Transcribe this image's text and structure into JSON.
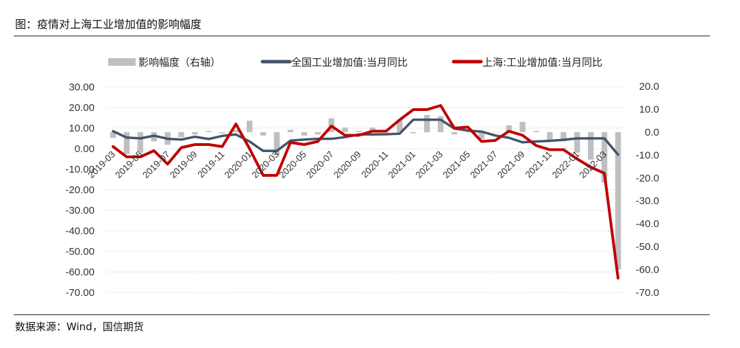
{
  "header": {
    "title": "图：疫情对上海工业增加值的影响幅度"
  },
  "footer": {
    "source": "数据来源：Wind，国信期货"
  },
  "chart_data": {
    "type": "bar+line",
    "title": "",
    "legend_placement": "top",
    "grid": true,
    "x": [
      "2019-03",
      "2019-04",
      "2019-05",
      "2019-06",
      "2019-07",
      "2019-08",
      "2019-09",
      "2019-10",
      "2019-11",
      "2019-12",
      "2020-01",
      "2020-02",
      "2020-03",
      "2020-04",
      "2020-05",
      "2020-06",
      "2020-07",
      "2020-08",
      "2020-09",
      "2020-10",
      "2020-11",
      "2020-12",
      "2021-01",
      "2021-02",
      "2021-03",
      "2021-04",
      "2021-05",
      "2021-06",
      "2021-07",
      "2021-08",
      "2021-09",
      "2021-10",
      "2021-11",
      "2021-12",
      "2022-01",
      "2022-02",
      "2022-03",
      "2022-04"
    ],
    "x_tick_labels": [
      "2019-03",
      "2019-05",
      "2019-07",
      "2019-09",
      "2019-11",
      "2020-01",
      "2020-03",
      "2020-05",
      "2020-07",
      "2020-09",
      "2020-11",
      "2021-01",
      "2021-03",
      "2021-05",
      "2021-07",
      "2021-09",
      "2021-11",
      "2022-01",
      "2022-03"
    ],
    "left_axis": {
      "ylim": [
        -70,
        30
      ],
      "ticks": [
        "30.00",
        "20.00",
        "10.00",
        "0.00",
        "-10.00",
        "-20.00",
        "-30.00",
        "-40.00",
        "-50.00",
        "-60.00",
        "-70.00"
      ]
    },
    "right_axis": {
      "ylim": [
        -70,
        20
      ],
      "ticks": [
        "20.0",
        "10.0",
        "0.0",
        "-10.0",
        "-20.0",
        "-30.0",
        "-40.0",
        "-50.0",
        "-60.0",
        "-70.0"
      ]
    },
    "series": [
      {
        "name": "影响幅度（右轴）",
        "type": "bar",
        "axis": "right",
        "color": "#bfbfbf",
        "values": [
          -2.5,
          -9.5,
          -9.0,
          -4.0,
          -5.5,
          -2.2,
          -1.0,
          0.5,
          -0.5,
          1.0,
          5.0,
          -1.5,
          -10.0,
          1.0,
          -1.5,
          -1.0,
          6.0,
          2.0,
          0.5,
          2.0,
          0.0,
          5.5,
          -0.5,
          7.5,
          7.0,
          -1.0,
          0.0,
          -3.0,
          0.0,
          3.0,
          4.5,
          0.5,
          -3.5,
          -4.0,
          -9.0,
          -12.0,
          -22.0,
          -60.0
        ]
      },
      {
        "name": "全国工业增加值:当月同比",
        "type": "line",
        "axis": "left",
        "color": "#44546a",
        "values": [
          8.5,
          5.4,
          5.0,
          6.3,
          4.8,
          4.4,
          5.8,
          4.7,
          6.2,
          6.9,
          3.5,
          -1.1,
          -1.1,
          3.9,
          4.4,
          4.8,
          4.8,
          5.6,
          6.9,
          6.9,
          7.0,
          7.3,
          14.1,
          14.1,
          14.1,
          9.8,
          8.8,
          8.3,
          6.4,
          5.3,
          3.1,
          3.5,
          3.8,
          4.3,
          5.0,
          5.0,
          5.0,
          -2.9
        ]
      },
      {
        "name": "上海:工业增加值:当月同比",
        "type": "line",
        "axis": "left",
        "color": "#c00000",
        "values": [
          1.0,
          -4.0,
          -4.0,
          -1.0,
          -7.5,
          0.5,
          2.0,
          2.0,
          1.0,
          12.0,
          0.0,
          -13.0,
          -13.0,
          3.0,
          2.0,
          3.5,
          11.0,
          6.5,
          6.5,
          8.5,
          8.5,
          14.0,
          19.0,
          19.0,
          21.0,
          10.0,
          10.5,
          3.5,
          4.0,
          8.5,
          6.5,
          1.5,
          -0.5,
          -0.5,
          -5.0,
          -9.0,
          -12.0,
          -63.0
        ]
      }
    ]
  }
}
